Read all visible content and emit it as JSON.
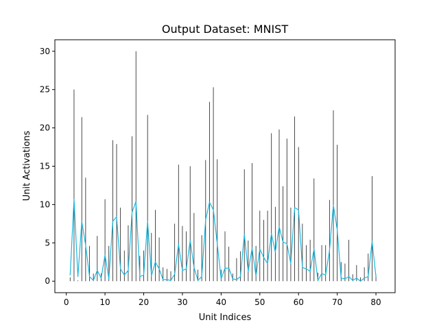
{
  "chart_data": {
    "type": "line",
    "title": "Output Dataset: MNIST",
    "xlabel": "Unit Indices",
    "ylabel": "Unit Activations",
    "xlim": [
      -2.95,
      84.95
    ],
    "ylim": [
      -1.5,
      31.5
    ],
    "xticks": [
      0,
      10,
      20,
      30,
      40,
      50,
      60,
      70,
      80
    ],
    "yticks": [
      0,
      5,
      10,
      15,
      20,
      25,
      30
    ],
    "grid": false,
    "x": [
      1,
      2,
      3,
      4,
      5,
      6,
      7,
      8,
      9,
      10,
      11,
      12,
      13,
      14,
      15,
      16,
      17,
      18,
      19,
      20,
      21,
      22,
      23,
      24,
      25,
      26,
      27,
      28,
      29,
      30,
      31,
      32,
      33,
      34,
      35,
      36,
      37,
      38,
      39,
      40,
      41,
      42,
      43,
      44,
      45,
      46,
      47,
      48,
      49,
      50,
      51,
      52,
      53,
      54,
      55,
      56,
      57,
      58,
      59,
      60,
      61,
      62,
      63,
      64,
      65,
      66,
      67,
      68,
      69,
      70,
      71,
      72,
      73,
      74,
      75,
      76,
      77,
      78,
      79,
      80
    ],
    "series": [
      {
        "kind": "vlines",
        "color": "#1a1a1a",
        "values": [
          0.5,
          25.0,
          0.1,
          21.4,
          13.5,
          4.6,
          1.0,
          5.9,
          1.0,
          10.7,
          4.6,
          18.4,
          17.9,
          9.6,
          4.0,
          7.3,
          18.9,
          30.0,
          3.3,
          4.0,
          21.7,
          6.3,
          9.3,
          5.7,
          1.8,
          1.6,
          1.3,
          7.5,
          15.2,
          7.2,
          6.5,
          15.0,
          8.9,
          1.5,
          6.0,
          15.8,
          23.4,
          25.3,
          15.9,
          1.5,
          6.5,
          4.5,
          1.0,
          3.0,
          3.9,
          14.6,
          5.3,
          15.4,
          4.6,
          9.2,
          8.0,
          9.2,
          19.3,
          9.7,
          19.8,
          12.4,
          18.6,
          9.6,
          21.5,
          17.5,
          7.5,
          4.7,
          5.4,
          13.4,
          1.1,
          4.7,
          4.7,
          10.6,
          22.3,
          17.8,
          2.5,
          2.3,
          5.4,
          0.9,
          2.1,
          0.5,
          1.8,
          3.6,
          13.7,
          0.9
        ]
      },
      {
        "kind": "line",
        "color": "#17b8e0",
        "values": [
          0.8,
          10.7,
          0.6,
          7.8,
          4.7,
          0.6,
          0.1,
          1.4,
          0.4,
          3.4,
          0.3,
          7.8,
          8.4,
          1.6,
          0.8,
          1.4,
          9.0,
          10.4,
          0.6,
          0.8,
          7.8,
          0.7,
          2.5,
          1.6,
          0.2,
          0.2,
          0.1,
          0.9,
          4.8,
          1.4,
          1.6,
          5.3,
          1.8,
          0.1,
          0.6,
          8.0,
          10.3,
          9.3,
          4.9,
          0.3,
          1.7,
          1.7,
          0.3,
          0.2,
          0.6,
          6.1,
          1.3,
          4.3,
          0.7,
          4.2,
          3.1,
          2.3,
          6.2,
          3.8,
          7.1,
          5.1,
          4.9,
          2.3,
          9.6,
          9.3,
          1.8,
          1.6,
          1.3,
          4.2,
          0.1,
          1.0,
          0.8,
          4.0,
          9.9,
          6.7,
          0.4,
          0.3,
          0.6,
          0.1,
          0.4,
          0.0,
          0.4,
          0.6,
          5.2,
          0.6
        ]
      }
    ]
  }
}
